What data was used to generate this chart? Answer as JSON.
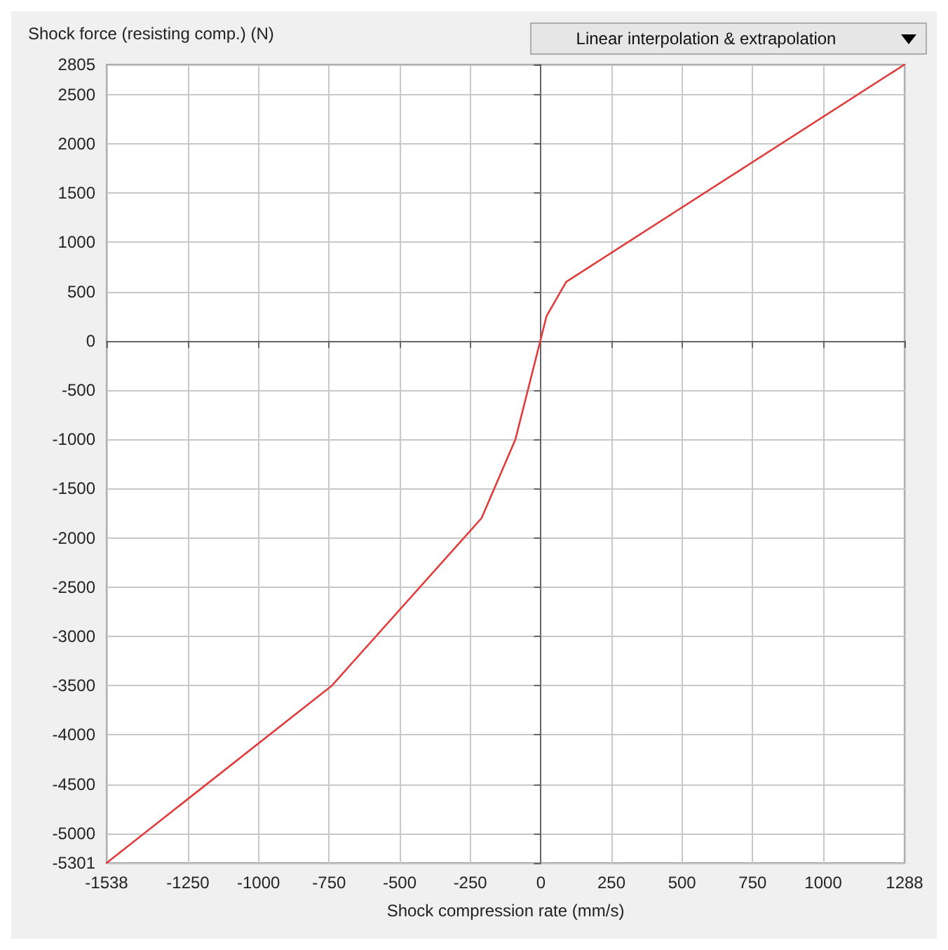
{
  "chart_data": {
    "type": "line",
    "xlabel": "Shock compression rate (mm/s)",
    "ylabel": "Shock force (resisting comp.) (N)",
    "annotations": [
      "Linear interpolation & extrapolation"
    ],
    "series": [
      {
        "color": "#e03c3c",
        "x": [
          -1538,
          -740,
          -210,
          -90,
          20,
          90,
          1288
        ],
        "values": [
          -5301,
          -3500,
          -1800,
          -1000,
          250,
          600,
          2805
        ]
      }
    ],
    "xlim": [
      -1538,
      1288
    ],
    "xticks": [
      -1538,
      -1250,
      -1000,
      -750,
      -500,
      -250,
      0,
      250,
      500,
      750,
      1000,
      1288
    ],
    "ylim": [
      -5301,
      2805
    ],
    "yticks": [
      -5301,
      -5000,
      -4500,
      -4000,
      -3500,
      -3000,
      -2500,
      -2000,
      -1500,
      -1000,
      -500,
      0,
      500,
      1000,
      1500,
      2000,
      2500,
      2805
    ],
    "grid": true,
    "marker": "none",
    "line_style": "solid"
  }
}
